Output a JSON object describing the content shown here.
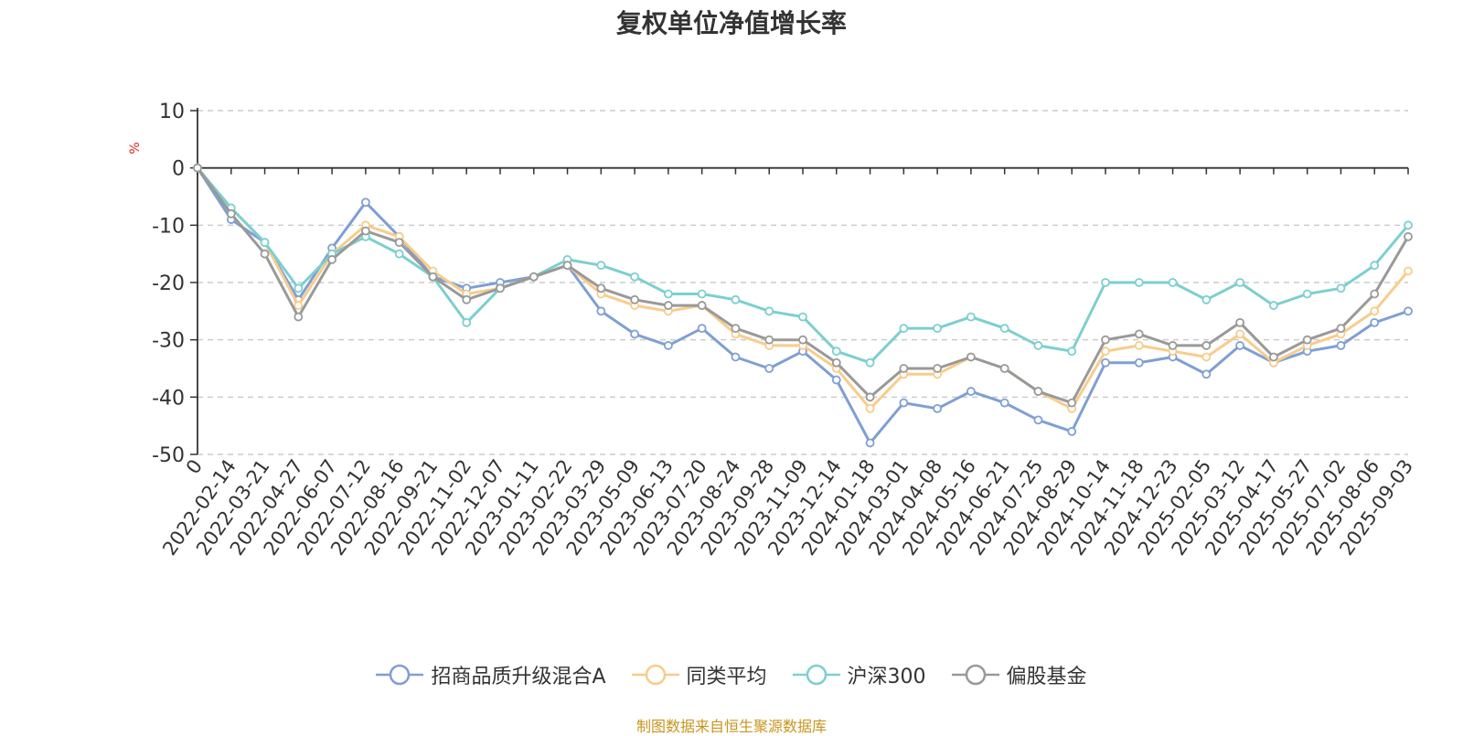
{
  "title": "复权单位净值增长率",
  "source_note": "制图数据来自恒生聚源数据库",
  "chart_data": {
    "type": "line",
    "title": "复权单位净值增长率",
    "ylabel": "%",
    "ylim": [
      -50,
      10
    ],
    "yticks": [
      10,
      0,
      -10,
      -20,
      -30,
      -40,
      -50
    ],
    "grid": true,
    "legend_position": "bottom-center",
    "categories": [
      "0",
      "2022-02-14",
      "2022-03-21",
      "2022-04-27",
      "2022-06-07",
      "2022-07-12",
      "2022-08-16",
      "2022-09-21",
      "2022-11-02",
      "2022-12-07",
      "2023-01-11",
      "2023-02-22",
      "2023-03-29",
      "2023-05-09",
      "2023-06-13",
      "2023-07-20",
      "2023-08-24",
      "2023-09-28",
      "2023-11-09",
      "2023-12-14",
      "2024-01-18",
      "2024-03-01",
      "2024-04-08",
      "2024-05-16",
      "2024-06-21",
      "2024-07-25",
      "2024-08-29",
      "2024-10-14",
      "2024-11-18",
      "2024-12-23",
      "2025-02-05",
      "2025-03-12",
      "2025-04-17",
      "2025-05-27",
      "2025-07-02",
      "2025-08-06",
      "2025-09-03"
    ],
    "series": [
      {
        "name": "招商品质升级混合A",
        "color": "#7f9fd4",
        "values": [
          0,
          -9,
          -13,
          -23,
          -14,
          -6,
          -12,
          -19,
          -21,
          -20,
          -19,
          -17,
          -25,
          -29,
          -31,
          -28,
          -33,
          -35,
          -32,
          -37,
          -48,
          -41,
          -42,
          -39,
          -41,
          -44,
          -46,
          -34,
          -34,
          -33,
          -36,
          -31,
          -34,
          -32,
          -31,
          -27,
          -25
        ]
      },
      {
        "name": "同类平均",
        "color": "#f8cc8b",
        "values": [
          0,
          -7,
          -13,
          -24,
          -15,
          -10,
          -12,
          -18,
          -22,
          -21,
          -19,
          -17,
          -22,
          -24,
          -25,
          -24,
          -29,
          -31,
          -31,
          -35,
          -42,
          -36,
          -36,
          -33,
          -35,
          -39,
          -42,
          -32,
          -31,
          -32,
          -33,
          -29,
          -34,
          -31,
          -29,
          -25,
          -18
        ]
      },
      {
        "name": "沪深300",
        "color": "#7ccfcf",
        "values": [
          0,
          -7,
          -13,
          -21,
          -15,
          -12,
          -15,
          -19,
          -27,
          -21,
          -19,
          -16,
          -17,
          -19,
          -22,
          -22,
          -23,
          -25,
          -26,
          -32,
          -34,
          -28,
          -28,
          -26,
          -28,
          -31,
          -32,
          -20,
          -20,
          -20,
          -23,
          -20,
          -24,
          -22,
          -21,
          -17,
          -10
        ]
      },
      {
        "name": "偏股基金",
        "color": "#999999",
        "values": [
          0,
          -8,
          -15,
          -26,
          -16,
          -11,
          -13,
          -19,
          -23,
          -21,
          -19,
          -17,
          -21,
          -23,
          -24,
          -24,
          -28,
          -30,
          -30,
          -34,
          -40,
          -35,
          -35,
          -33,
          -35,
          -39,
          -41,
          -30,
          -29,
          -31,
          -31,
          -27,
          -33,
          -30,
          -28,
          -22,
          -12
        ]
      }
    ]
  }
}
